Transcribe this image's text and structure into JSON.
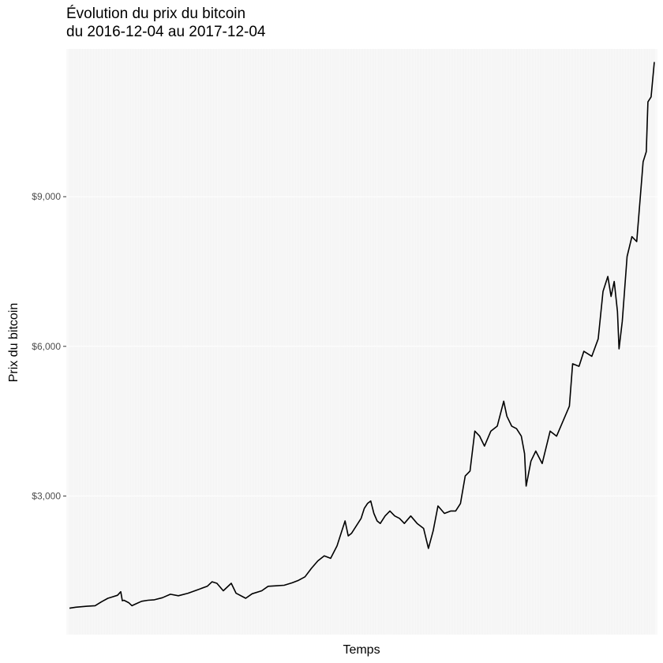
{
  "chart_data": {
    "type": "line",
    "title": "Évolution du prix du bitcoin",
    "subtitle": "du 2016-12-04 au 2017-12-04",
    "xlabel": "Temps",
    "ylabel": "Prix du bitcoin",
    "xlim": [
      "2016-12-04",
      "2017-12-04"
    ],
    "ylim": [
      0,
      11700
    ],
    "y_ticks": [
      3000,
      6000,
      9000
    ],
    "y_tick_labels": [
      "$3,000",
      "$6,000",
      "$9,000"
    ],
    "x_tick_labels": [],
    "grid": true,
    "legend": "none",
    "line_color": "#000000",
    "panel_color": "#f9f9f9",
    "series": [
      {
        "x": [
          "2016-12-04",
          "2016-12-08",
          "2016-12-15",
          "2016-12-20",
          "2016-12-24",
          "2016-12-28",
          "2016-12-31",
          "2017-01-03",
          "2017-01-05",
          "2017-01-06",
          "2017-01-07",
          "2017-01-10",
          "2017-01-12",
          "2017-01-14",
          "2017-01-18",
          "2017-01-22",
          "2017-01-26",
          "2017-01-31",
          "2017-02-05",
          "2017-02-10",
          "2017-02-16",
          "2017-02-22",
          "2017-02-28",
          "2017-03-03",
          "2017-03-06",
          "2017-03-10",
          "2017-03-15",
          "2017-03-18",
          "2017-03-24",
          "2017-03-28",
          "2017-04-03",
          "2017-04-07",
          "2017-04-12",
          "2017-04-17",
          "2017-04-22",
          "2017-04-26",
          "2017-04-30",
          "2017-05-04",
          "2017-05-08",
          "2017-05-12",
          "2017-05-16",
          "2017-05-20",
          "2017-05-23",
          "2017-05-25",
          "2017-05-27",
          "2017-05-29",
          "2017-06-01",
          "2017-06-04",
          "2017-06-06",
          "2017-06-08",
          "2017-06-10",
          "2017-06-12",
          "2017-06-14",
          "2017-06-16",
          "2017-06-19",
          "2017-06-22",
          "2017-06-25",
          "2017-06-28",
          "2017-07-01",
          "2017-07-05",
          "2017-07-09",
          "2017-07-13",
          "2017-07-16",
          "2017-07-19",
          "2017-07-22",
          "2017-07-26",
          "2017-07-30",
          "2017-08-02",
          "2017-08-05",
          "2017-08-08",
          "2017-08-11",
          "2017-08-14",
          "2017-08-17",
          "2017-08-20",
          "2017-08-24",
          "2017-08-28",
          "2017-09-01",
          "2017-09-03",
          "2017-09-06",
          "2017-09-09",
          "2017-09-12",
          "2017-09-14",
          "2017-09-15",
          "2017-09-18",
          "2017-09-21",
          "2017-09-25",
          "2017-09-30",
          "2017-10-04",
          "2017-10-08",
          "2017-10-12",
          "2017-10-14",
          "2017-10-18",
          "2017-10-21",
          "2017-10-26",
          "2017-10-30",
          "2017-11-02",
          "2017-11-05",
          "2017-11-07",
          "2017-11-09",
          "2017-11-11",
          "2017-11-12",
          "2017-11-14",
          "2017-11-17",
          "2017-11-20",
          "2017-11-23",
          "2017-11-26",
          "2017-11-27",
          "2017-11-29",
          "2017-11-30",
          "2017-12-02",
          "2017-12-04"
        ],
        "y": [
          750,
          770,
          790,
          800,
          880,
          950,
          980,
          1010,
          1080,
          900,
          910,
          860,
          800,
          830,
          890,
          910,
          920,
          960,
          1030,
          1000,
          1050,
          1120,
          1190,
          1280,
          1250,
          1100,
          1250,
          1050,
          950,
          1040,
          1100,
          1190,
          1200,
          1210,
          1260,
          1310,
          1380,
          1550,
          1700,
          1800,
          1750,
          2000,
          2300,
          2500,
          2200,
          2250,
          2400,
          2550,
          2750,
          2850,
          2900,
          2650,
          2500,
          2450,
          2600,
          2700,
          2600,
          2550,
          2450,
          2600,
          2450,
          2350,
          1950,
          2300,
          2800,
          2650,
          2700,
          2700,
          2850,
          3400,
          3500,
          4300,
          4200,
          4000,
          4300,
          4400,
          4900,
          4600,
          4400,
          4350,
          4200,
          3850,
          3200,
          3700,
          3900,
          3650,
          4300,
          4200,
          4500,
          4800,
          5650,
          5600,
          5900,
          5800,
          6150,
          7100,
          7400,
          7000,
          7300,
          6700,
          5950,
          6500,
          7800,
          8200,
          8100,
          9300,
          9700,
          9900,
          10900,
          11000,
          11700
        ]
      }
    ]
  }
}
